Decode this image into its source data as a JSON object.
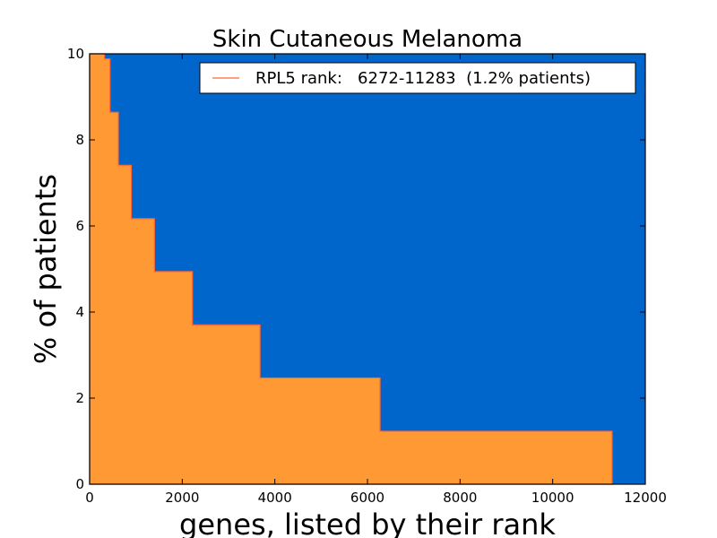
{
  "chart_data": {
    "type": "area",
    "title": "Skin Cutaneous Melanoma",
    "xlabel": "genes, listed by their rank",
    "ylabel": "% of patients",
    "xlim": [
      0,
      12000
    ],
    "ylim": [
      0,
      10
    ],
    "xticks": [
      0,
      2000,
      4000,
      6000,
      8000,
      10000,
      12000
    ],
    "yticks": [
      0,
      2,
      4,
      6,
      8,
      10
    ],
    "background_color": "#0066cc",
    "fill_color": "#ff9933",
    "line_color": "#ff6633",
    "grid": false,
    "legend_position": "top-right",
    "legend": [
      "RPL5 rank:   6272-11283  (1.2% patients)"
    ],
    "series": [
      {
        "name": "RPL5 rank:   6272-11283  (1.2% patients)",
        "step_x": [
          0,
          320,
          440,
          620,
          900,
          1400,
          2220,
          3680,
          6272,
          11283
        ],
        "step_y": [
          10,
          9.88,
          8.64,
          7.41,
          6.17,
          4.94,
          3.7,
          2.47,
          1.23,
          0
        ]
      }
    ]
  }
}
